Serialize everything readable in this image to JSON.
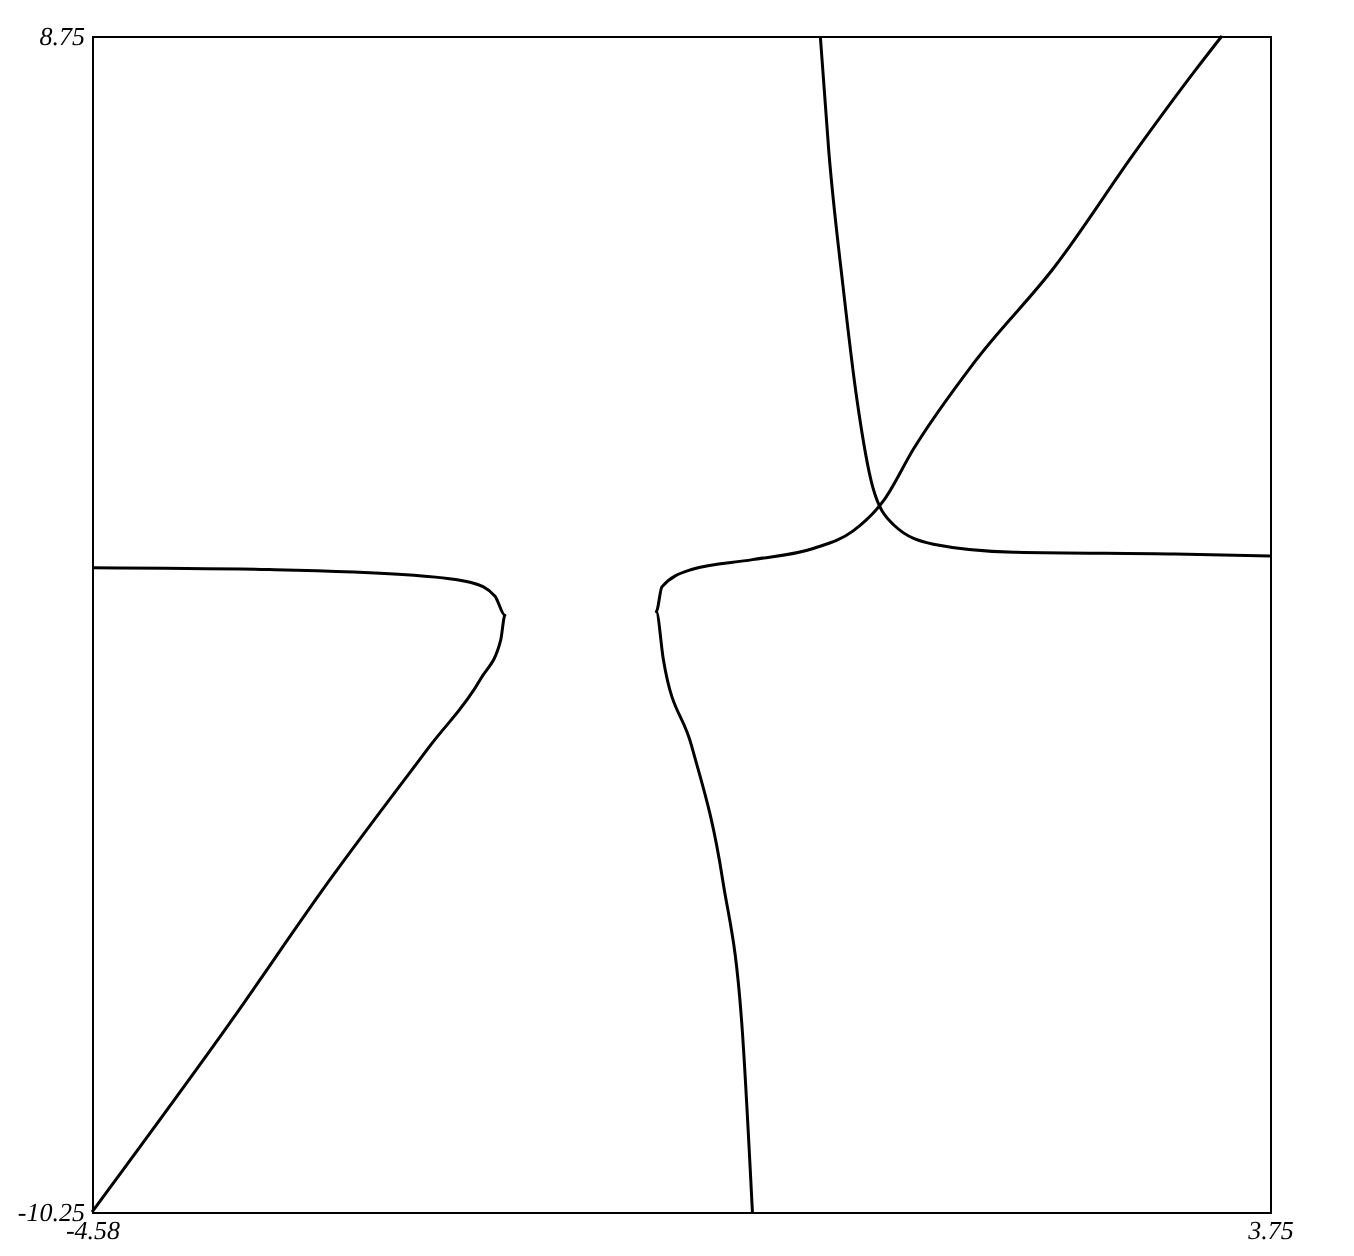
{
  "chart_data": {
    "type": "line",
    "xlim": [
      -4.58,
      3.75
    ],
    "ylim": [
      -10.25,
      8.75
    ],
    "xticks": [
      {
        "value": -4.58,
        "label": "-4.58"
      },
      {
        "value": 3.75,
        "label": "3.75"
      }
    ],
    "yticks": [
      {
        "value": -10.25,
        "label": "-10.25"
      },
      {
        "value": 8.75,
        "label": "8.75"
      }
    ],
    "legend": false,
    "marker": "none",
    "line_style": "solid",
    "series": [
      {
        "color": "#000000",
        "x": [
          -4.58,
          -3.33,
          -2.33,
          -1.9,
          -1.73,
          -1.66,
          -1.69,
          -1.83,
          -2.19,
          -2.9,
          -3.61,
          -4.58
        ],
        "values": [
          0.16,
          0.13,
          0.04,
          -0.08,
          -0.3,
          -0.61,
          -1.01,
          -1.63,
          -2.72,
          -4.89,
          -7.21,
          -10.25
        ]
      },
      {
        "color": "#000000",
        "x": [
          0.09,
          0.02,
          -0.12,
          -0.34,
          -0.54,
          -0.59,
          -0.55,
          -0.34,
          0.09,
          0.52,
          0.8,
          1.02,
          1.23,
          1.66,
          2.23,
          2.8,
          3.22,
          3.41
        ],
        "values": [
          -10.25,
          -7.37,
          -4.89,
          -2.72,
          -1.32,
          -0.55,
          -0.15,
          0.13,
          0.29,
          0.47,
          0.75,
          1.25,
          2.08,
          3.48,
          5.03,
          6.89,
          8.19,
          8.75
        ]
      },
      {
        "color": "#000000",
        "x": [
          0.57,
          0.63,
          0.73,
          0.83,
          0.94,
          1.09,
          1.37,
          1.94,
          3.08,
          3.75
        ],
        "values": [
          8.75,
          6.89,
          4.72,
          2.86,
          1.47,
          0.85,
          0.54,
          0.41,
          0.38,
          0.35
        ]
      }
    ]
  }
}
